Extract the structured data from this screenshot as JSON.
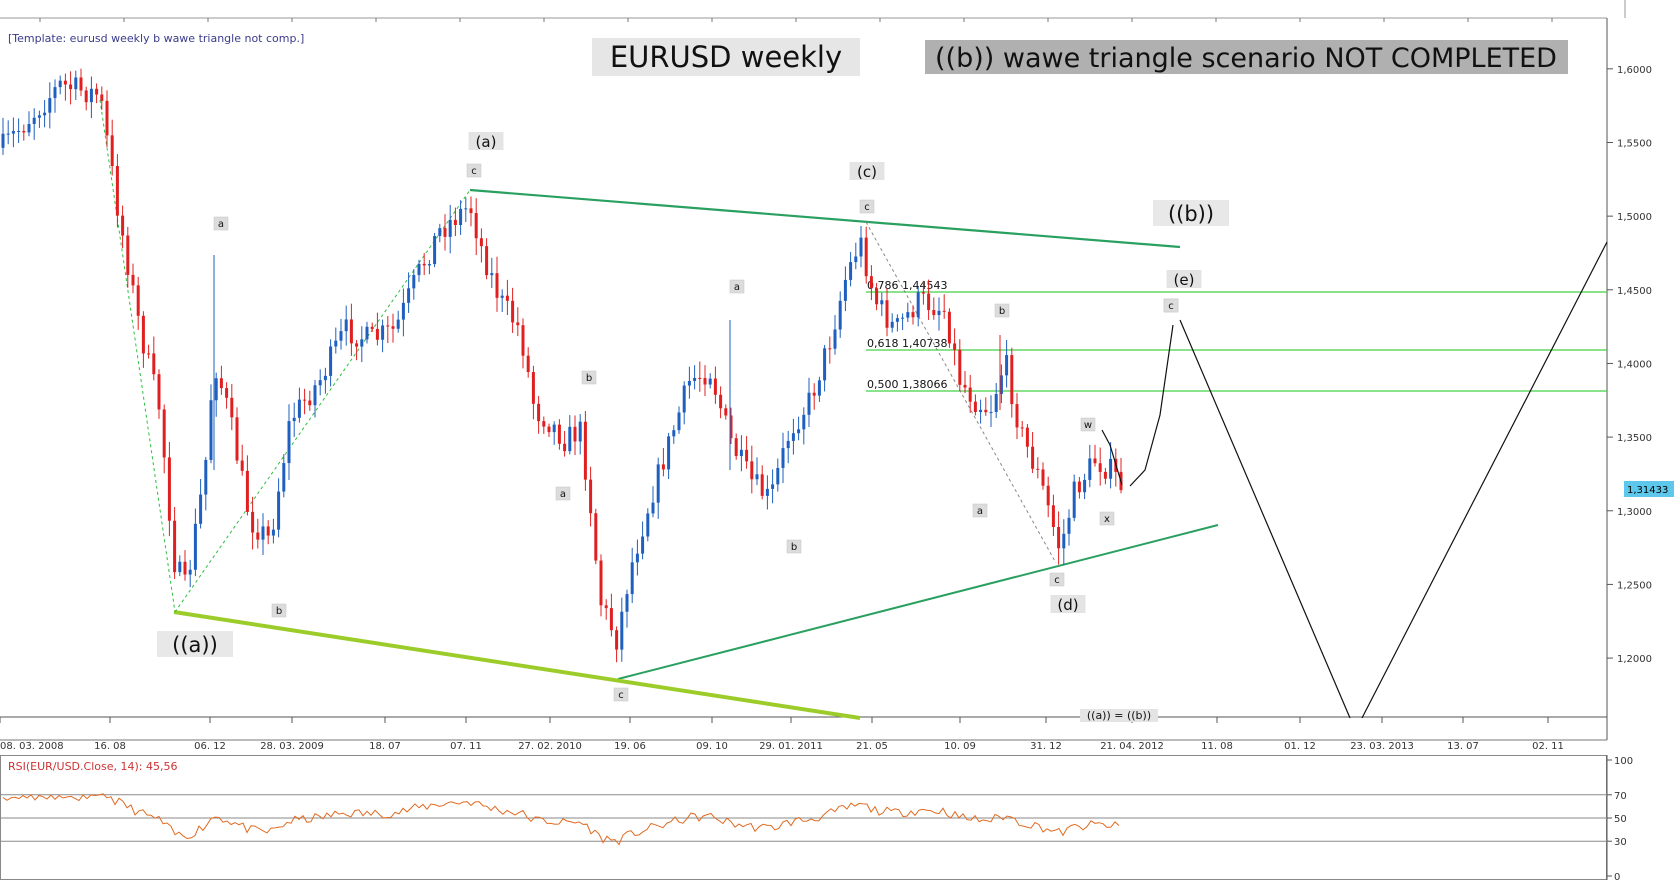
{
  "template_label": "[Template: eurusd weekly b wawe triangle not comp.]",
  "title_main": "EURUSD weekly",
  "title_scenario": "((b)) wawe triangle scenario NOT COMPLETED",
  "price_badge": "1,31433",
  "rsi_label": "RSI(EUR/USD.Close, 14): 45,56",
  "colors": {
    "bull": "#1f5fbf",
    "bear": "#e02020",
    "trend_dark": "#2aa060",
    "trend_light": "#9ccc2a",
    "fib": "#44d044",
    "rsi_line": "#e06a20",
    "price_badge_bg": "#5ec8ec",
    "label_bg": "#dcdcdc"
  },
  "chart_data": {
    "type": "candlestick",
    "title": "EURUSD weekly",
    "y_ticks": [
      "1,6000",
      "1,5500",
      "1,5000",
      "1,4500",
      "1,4000",
      "1,3500",
      "1,3000",
      "1,2500",
      "1,2000"
    ],
    "y_values": [
      1.6,
      1.55,
      1.5,
      1.45,
      1.4,
      1.35,
      1.3,
      1.25,
      1.2
    ],
    "x_ticks": [
      "08. 03. 2008",
      "16. 08",
      "06. 12",
      "28. 03. 2009",
      "18. 07",
      "07. 11",
      "27. 02. 2010",
      "19. 06",
      "09. 10",
      "29. 01. 2011",
      "21. 05",
      "10. 09",
      "31. 12",
      "21. 04. 2012",
      "11. 08",
      "01. 12",
      "23. 03. 2013",
      "13. 07",
      "02. 11"
    ],
    "ylim": [
      1.16,
      1.635
    ],
    "last_price": 1.31433,
    "fib_levels": [
      {
        "label": "0,786 1,44543",
        "value": 1.44543
      },
      {
        "label": "0,618 1,40738",
        "value": 1.40738
      },
      {
        "label": "0,500 1,38066",
        "value": 1.38066
      }
    ],
    "price_path": [
      [
        "08. 03. 2008",
        1.56
      ],
      [
        "2008-04",
        1.59
      ],
      [
        "2008-06",
        1.575
      ],
      [
        "16. 08",
        1.49
      ],
      [
        "2008-09",
        1.41
      ],
      [
        "2008-10",
        1.28
      ],
      [
        "06. 12",
        1.25
      ],
      [
        "2008-12",
        1.4
      ],
      [
        "2009-01",
        1.3
      ],
      [
        "2009-02",
        1.27
      ],
      [
        "28. 03. 2009",
        1.32
      ],
      [
        "2009-05",
        1.37
      ],
      [
        "18. 07",
        1.41
      ],
      [
        "2009-09",
        1.46
      ],
      [
        "07. 11",
        1.5
      ],
      [
        "2009-12",
        1.45
      ],
      [
        "2010-01",
        1.41
      ],
      [
        "27. 02. 2010",
        1.37
      ],
      [
        "2010-04",
        1.33
      ],
      [
        "2010-05",
        1.25
      ],
      [
        "19. 06",
        1.21
      ],
      [
        "2010-08",
        1.29
      ],
      [
        "2010-09",
        1.35
      ],
      [
        "09. 10",
        1.4
      ],
      [
        "2010-11",
        1.36
      ],
      [
        "2010-12",
        1.31
      ],
      [
        "29. 01. 2011",
        1.36
      ],
      [
        "2011-03",
        1.41
      ],
      [
        "2011-04",
        1.44
      ],
      [
        "21. 05",
        1.42
      ],
      [
        "2011-07",
        1.43
      ],
      [
        "10. 09",
        1.37
      ],
      [
        "2011-10",
        1.38
      ],
      [
        "2011-11",
        1.34
      ],
      [
        "31. 12",
        1.29
      ],
      [
        "2012-02",
        1.32
      ],
      [
        "2012-03",
        1.33
      ],
      [
        "21. 04. 2012",
        1.31
      ]
    ],
    "rsi": {
      "label": "RSI(EUR/USD.Close, 14): 45,56",
      "ylim": [
        0,
        100
      ],
      "levels": [
        70,
        50,
        30
      ],
      "tick_labels": [
        "100",
        "70",
        "50",
        "30",
        "0"
      ],
      "last": 45.56
    },
    "annotations": {
      "wave_labels": [
        {
          "text": "((a))",
          "kind": "big"
        },
        {
          "text": "(a)",
          "kind": "med"
        },
        {
          "text": "(c)",
          "kind": "med"
        },
        {
          "text": "((b))",
          "kind": "big"
        },
        {
          "text": "(e)",
          "kind": "med"
        },
        {
          "text": "(d)",
          "kind": "med"
        },
        {
          "text": "((a)) = ((b))",
          "kind": "small"
        }
      ],
      "sub_labels": [
        "a",
        "b",
        "c",
        "c",
        "a",
        "b",
        "a",
        "b",
        "c",
        "c",
        "a",
        "b",
        "c",
        "w",
        "x",
        "c"
      ]
    }
  }
}
